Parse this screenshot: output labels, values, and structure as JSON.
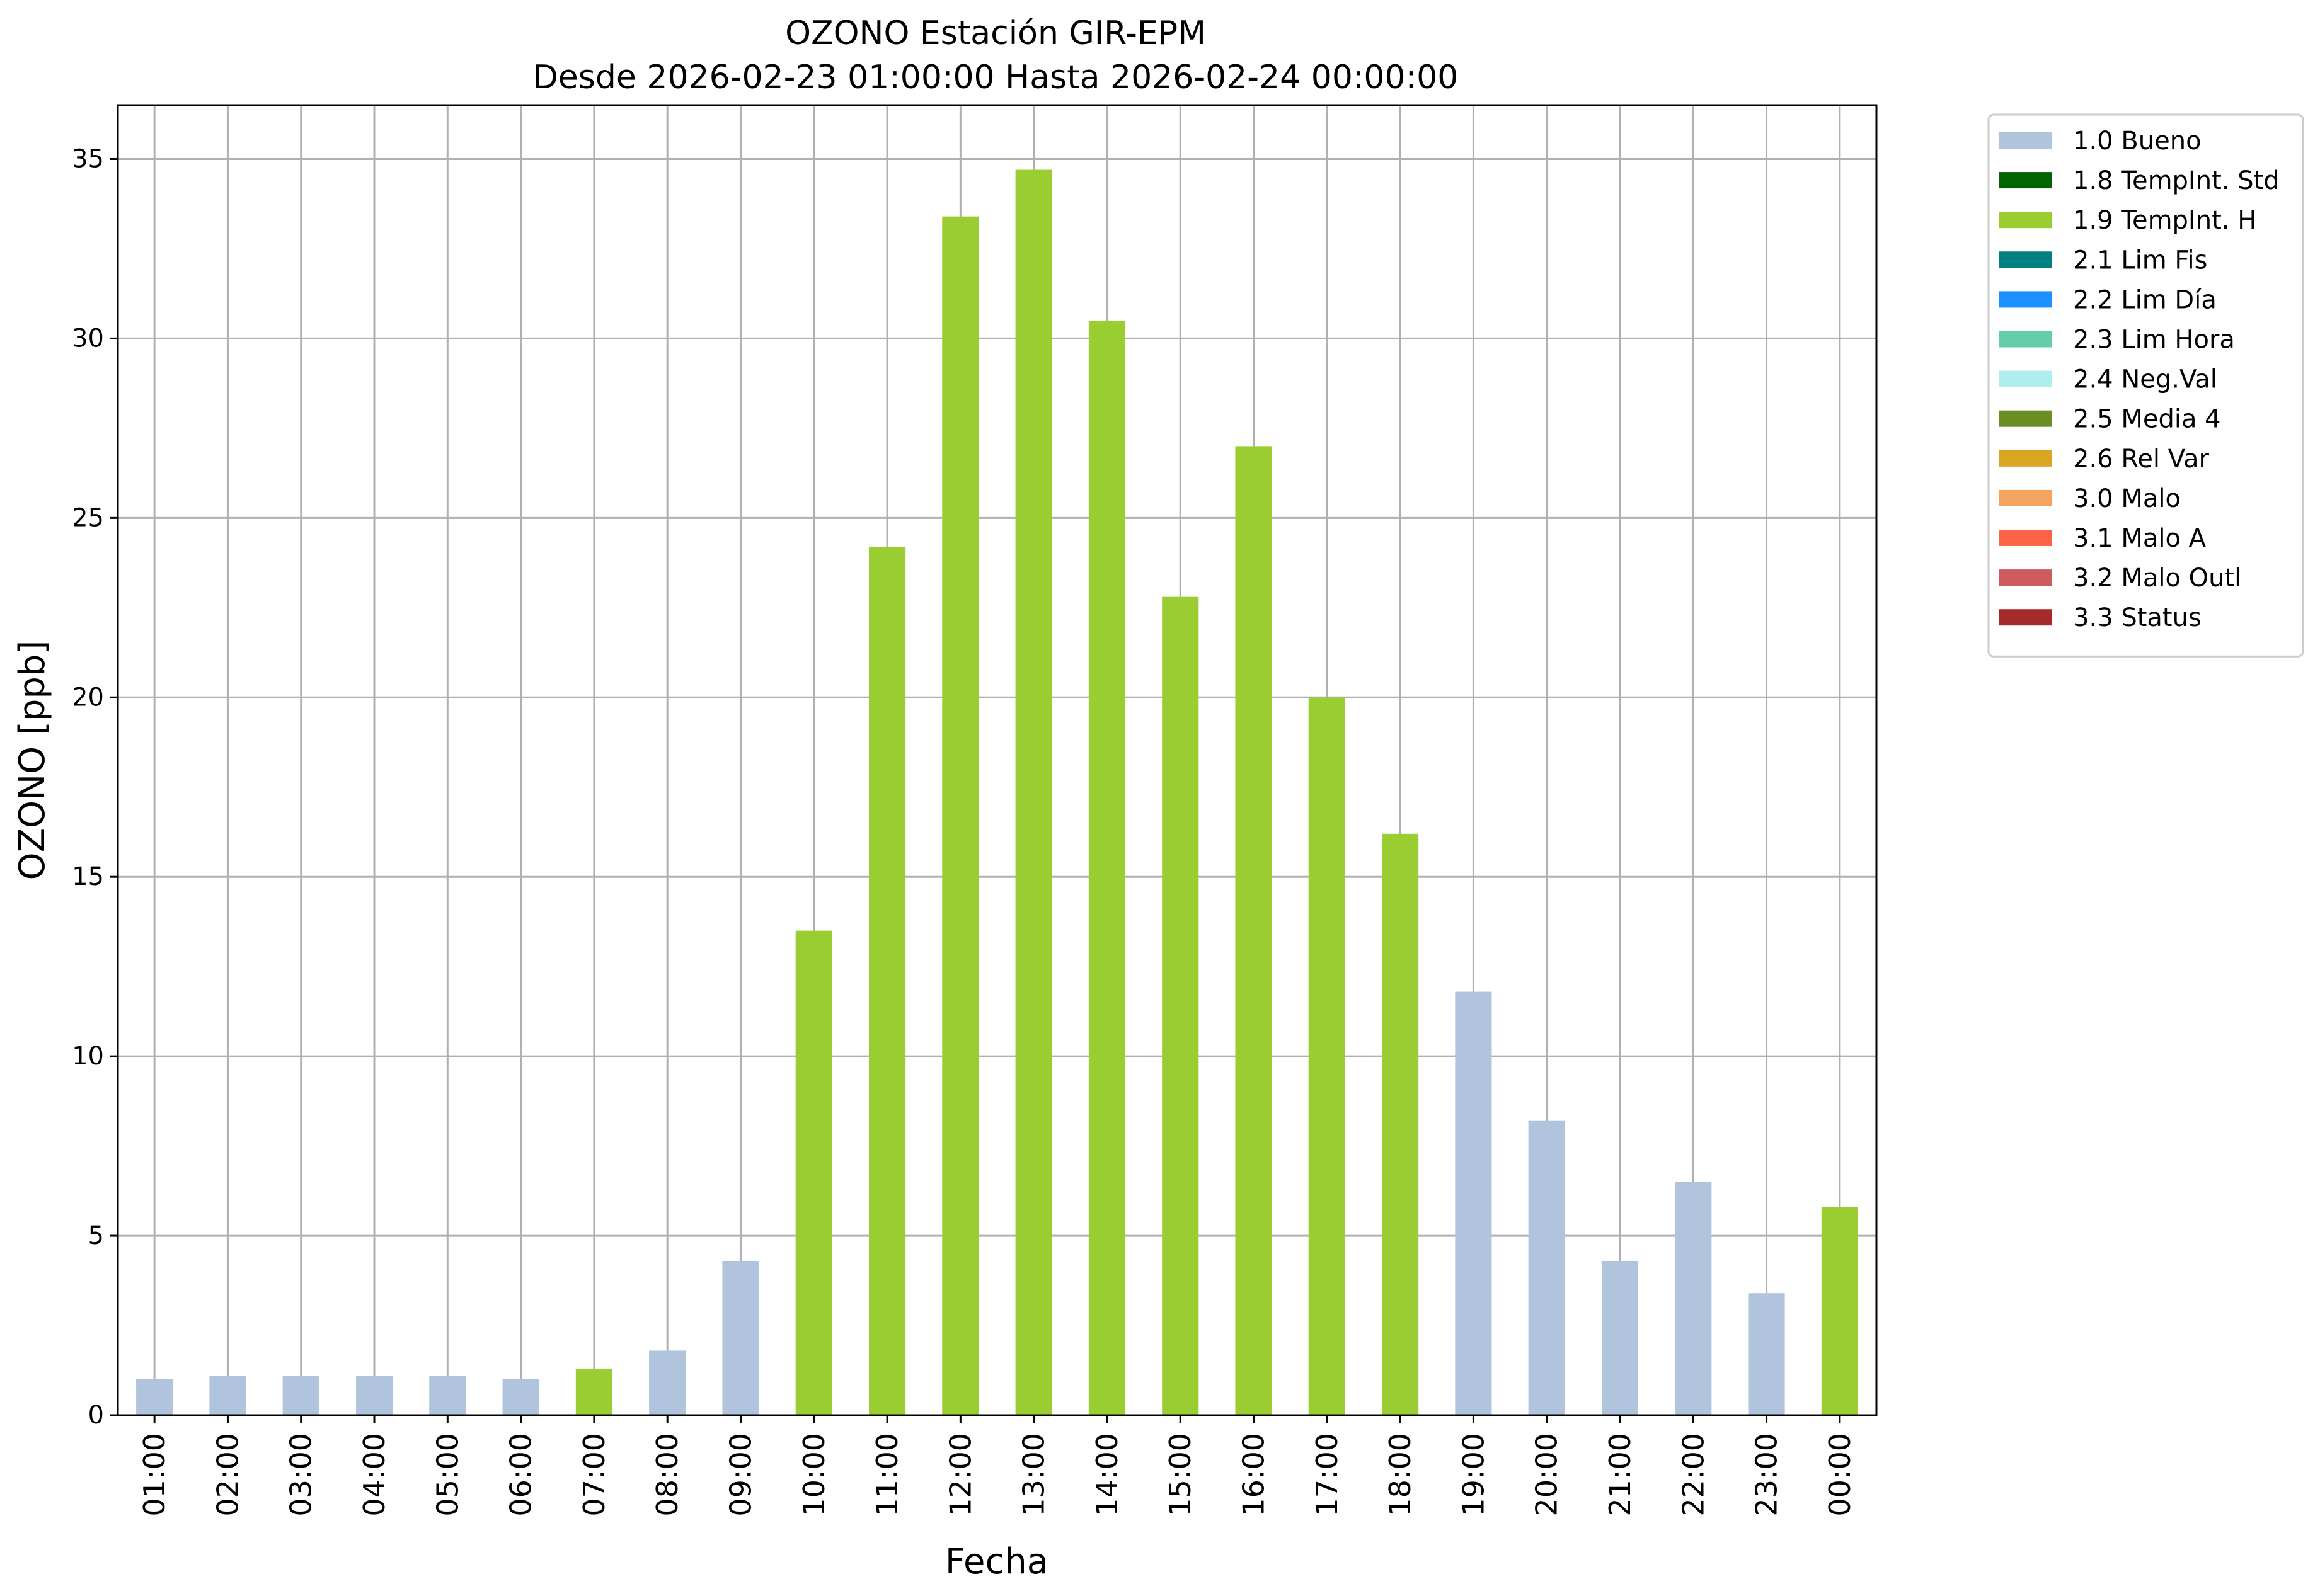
{
  "chart_data": {
    "type": "bar",
    "title": "OZONO Estación GIR-EPM",
    "subtitle": "Desde 2026-02-23 01:00:00 Hasta 2026-02-24 00:00:00",
    "xlabel": "Fecha",
    "ylabel": "OZONO [ppb]",
    "ylim": [
      0,
      36.5
    ],
    "yticks": [
      0,
      5,
      10,
      15,
      20,
      25,
      30,
      35
    ],
    "grid": true,
    "legend_position": "outside-right-top",
    "categories": [
      "01:00",
      "02:00",
      "03:00",
      "04:00",
      "05:00",
      "06:00",
      "07:00",
      "08:00",
      "09:00",
      "10:00",
      "11:00",
      "12:00",
      "13:00",
      "14:00",
      "15:00",
      "16:00",
      "17:00",
      "18:00",
      "19:00",
      "20:00",
      "21:00",
      "22:00",
      "23:00",
      "00:00"
    ],
    "values": [
      1.0,
      1.1,
      1.1,
      1.1,
      1.1,
      1.0,
      1.3,
      1.8,
      4.3,
      13.5,
      24.2,
      33.4,
      34.7,
      30.5,
      22.8,
      27.0,
      20.0,
      16.2,
      11.8,
      8.2,
      4.3,
      6.5,
      3.4,
      5.8
    ],
    "flags": [
      "1.0 Bueno",
      "1.0 Bueno",
      "1.0 Bueno",
      "1.0 Bueno",
      "1.0 Bueno",
      "1.0 Bueno",
      "1.9 TempInt. H",
      "1.0 Bueno",
      "1.0 Bueno",
      "1.9 TempInt. H",
      "1.9 TempInt. H",
      "1.9 TempInt. H",
      "1.9 TempInt. H",
      "1.9 TempInt. H",
      "1.9 TempInt. H",
      "1.9 TempInt. H",
      "1.9 TempInt. H",
      "1.9 TempInt. H",
      "1.0 Bueno",
      "1.0 Bueno",
      "1.0 Bueno",
      "1.0 Bueno",
      "1.0 Bueno",
      "1.9 TempInt. H"
    ],
    "legend": [
      {
        "name": "1.0 Bueno",
        "color": "#b0c4de"
      },
      {
        "name": "1.8 TempInt. Std",
        "color": "#006400"
      },
      {
        "name": "1.9 TempInt. H",
        "color": "#9acd32"
      },
      {
        "name": "2.1 Lim Fis",
        "color": "#008080"
      },
      {
        "name": "2.2 Lim Día",
        "color": "#1e90ff"
      },
      {
        "name": "2.3 Lim Hora",
        "color": "#66cdaa"
      },
      {
        "name": "2.4 Neg.Val",
        "color": "#afeeee"
      },
      {
        "name": "2.5 Media 4",
        "color": "#6b8e23"
      },
      {
        "name": "2.6 Rel Var",
        "color": "#daa520"
      },
      {
        "name": "3.0 Malo",
        "color": "#f4a460"
      },
      {
        "name": "3.1 Malo A",
        "color": "#ff6347"
      },
      {
        "name": "3.2 Malo Outl",
        "color": "#cd5c5c"
      },
      {
        "name": "3.3 Status",
        "color": "#a52a2a"
      }
    ]
  }
}
